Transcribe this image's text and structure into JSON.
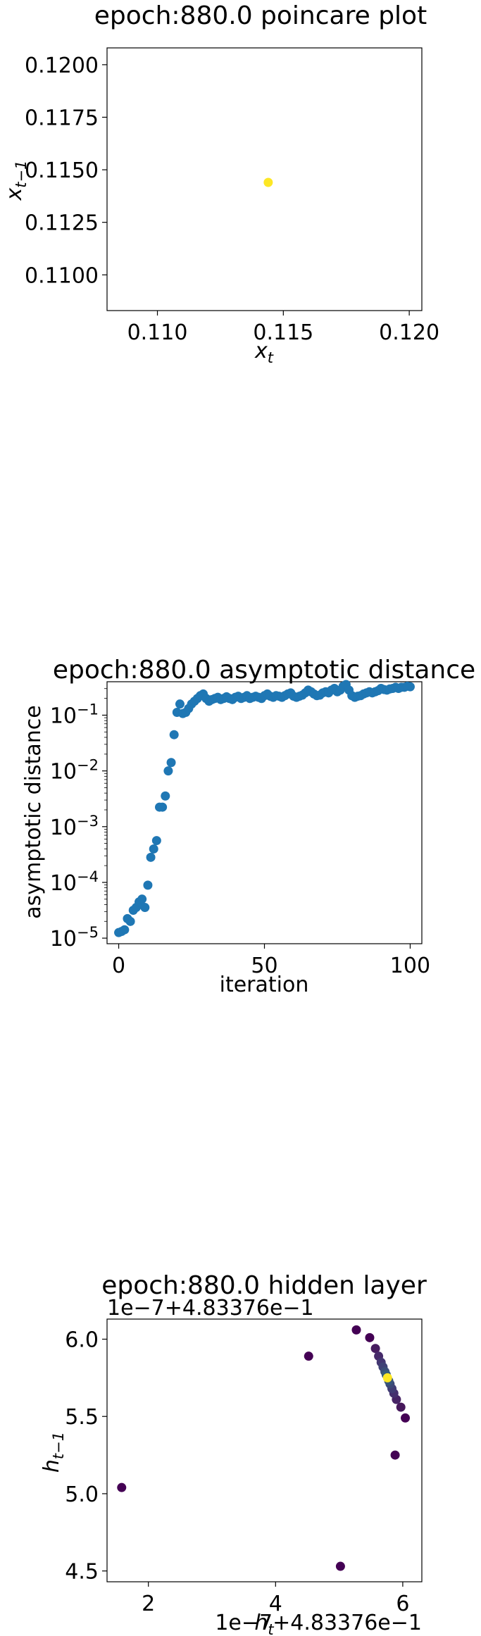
{
  "chart_data": [
    {
      "type": "scatter",
      "title": "epoch:880.0 poincare plot",
      "xlabel": "x_t",
      "ylabel": "x_{t-1}",
      "xlim": [
        0.108,
        0.1205
      ],
      "ylim": [
        0.1083,
        0.1208
      ],
      "xticks": [
        "0.110",
        "0.115",
        "0.120"
      ],
      "yticks": [
        "0.1100",
        "0.1125",
        "0.1150",
        "0.1175",
        "0.1200"
      ],
      "grid": false,
      "points": [
        {
          "x": 0.1144,
          "y": 0.1144,
          "color": "#fde725"
        }
      ]
    },
    {
      "type": "scatter",
      "title": "epoch:880.0 asymptotic distance",
      "xlabel": "iteration",
      "ylabel": "asymptotic distance",
      "xlim": [
        -4,
        104
      ],
      "ylim_log10": [
        -5.1,
        -0.4
      ],
      "yscale": "log",
      "xticks": [
        "0",
        "50",
        "100"
      ],
      "yticks": [
        "10",
        "10",
        "10",
        "10",
        "10"
      ],
      "ytick_exponents": [
        "−5",
        "−4",
        "−3",
        "−2",
        "−1"
      ],
      "grid": false,
      "color": "#1f77b4",
      "x": [
        0,
        1,
        2,
        3,
        4,
        5,
        6,
        7,
        8,
        9,
        10,
        11,
        12,
        13,
        14,
        15,
        16,
        17,
        18,
        19,
        20,
        21,
        22,
        23,
        24,
        25,
        26,
        27,
        28,
        29,
        30,
        31,
        32,
        33,
        34,
        35,
        36,
        37,
        38,
        39,
        40,
        41,
        42,
        43,
        44,
        45,
        46,
        47,
        48,
        49,
        50,
        51,
        52,
        53,
        54,
        55,
        56,
        57,
        58,
        59,
        60,
        61,
        62,
        63,
        64,
        65,
        66,
        67,
        68,
        69,
        70,
        71,
        72,
        73,
        74,
        75,
        76,
        77,
        78,
        79,
        80,
        81,
        82,
        83,
        84,
        85,
        86,
        87,
        88,
        89,
        90,
        91,
        92,
        93,
        94,
        95,
        96,
        97,
        98,
        99,
        100
      ],
      "log10_y": [
        -4.9,
        -4.88,
        -4.85,
        -4.65,
        -4.7,
        -4.5,
        -4.45,
        -4.35,
        -4.3,
        -4.45,
        -4.05,
        -3.55,
        -3.4,
        -3.25,
        -2.65,
        -2.65,
        -2.45,
        -2.0,
        -1.85,
        -1.35,
        -0.95,
        -0.8,
        -0.97,
        -0.95,
        -0.88,
        -0.8,
        -0.75,
        -0.7,
        -0.65,
        -0.62,
        -0.7,
        -0.75,
        -0.72,
        -0.7,
        -0.68,
        -0.72,
        -0.7,
        -0.67,
        -0.7,
        -0.72,
        -0.68,
        -0.66,
        -0.7,
        -0.68,
        -0.65,
        -0.7,
        -0.68,
        -0.66,
        -0.68,
        -0.7,
        -0.65,
        -0.62,
        -0.66,
        -0.68,
        -0.65,
        -0.66,
        -0.68,
        -0.65,
        -0.62,
        -0.6,
        -0.66,
        -0.68,
        -0.66,
        -0.64,
        -0.6,
        -0.55,
        -0.58,
        -0.62,
        -0.65,
        -0.64,
        -0.6,
        -0.58,
        -0.6,
        -0.55,
        -0.52,
        -0.58,
        -0.55,
        -0.48,
        -0.45,
        -0.55,
        -0.65,
        -0.68,
        -0.66,
        -0.65,
        -0.62,
        -0.6,
        -0.58,
        -0.6,
        -0.58,
        -0.56,
        -0.52,
        -0.54,
        -0.55,
        -0.53,
        -0.52,
        -0.5,
        -0.52,
        -0.5,
        -0.5,
        -0.48,
        -0.49
      ]
    },
    {
      "type": "scatter",
      "title": "epoch:880.0 hidden layer",
      "xlabel": "h_t",
      "ylabel": "h_{t-1}",
      "xlim": [
        1.35,
        6.3
      ],
      "ylim": [
        4.43,
        6.13
      ],
      "xticks": [
        "2",
        "4",
        "6"
      ],
      "yticks": [
        "4.5",
        "5.0",
        "5.5",
        "6.0"
      ],
      "x_offset_label": "1e−7+4.83376e−1",
      "y_offset_label": "1e−7+4.83376e−1",
      "grid": false,
      "colormap": "viridis",
      "points": [
        {
          "x": 1.58,
          "y": 5.04,
          "color": "#440154"
        },
        {
          "x": 5.02,
          "y": 4.53,
          "color": "#440154"
        },
        {
          "x": 4.52,
          "y": 5.89,
          "color": "#440154"
        },
        {
          "x": 5.27,
          "y": 6.06,
          "color": "#440154"
        },
        {
          "x": 5.88,
          "y": 5.25,
          "color": "#440154"
        },
        {
          "x": 6.04,
          "y": 5.49,
          "color": "#440154"
        },
        {
          "x": 5.48,
          "y": 6.01,
          "color": "#440154"
        },
        {
          "x": 5.97,
          "y": 5.56,
          "color": "#46185b"
        },
        {
          "x": 5.57,
          "y": 5.94,
          "color": "#471d60"
        },
        {
          "x": 5.9,
          "y": 5.61,
          "color": "#472465"
        },
        {
          "x": 5.62,
          "y": 5.89,
          "color": "#462a6a"
        },
        {
          "x": 5.86,
          "y": 5.65,
          "color": "#45306e"
        },
        {
          "x": 5.66,
          "y": 5.85,
          "color": "#433672"
        },
        {
          "x": 5.83,
          "y": 5.68,
          "color": "#413c74"
        },
        {
          "x": 5.69,
          "y": 5.82,
          "color": "#3f4276"
        },
        {
          "x": 5.8,
          "y": 5.71,
          "color": "#3d4877"
        },
        {
          "x": 5.72,
          "y": 5.79,
          "color": "#3b4e78"
        },
        {
          "x": 5.78,
          "y": 5.73,
          "color": "#38557a"
        },
        {
          "x": 5.74,
          "y": 5.77,
          "color": "#365b7b"
        },
        {
          "x": 5.76,
          "y": 5.75,
          "color": "#fde725"
        }
      ]
    }
  ]
}
